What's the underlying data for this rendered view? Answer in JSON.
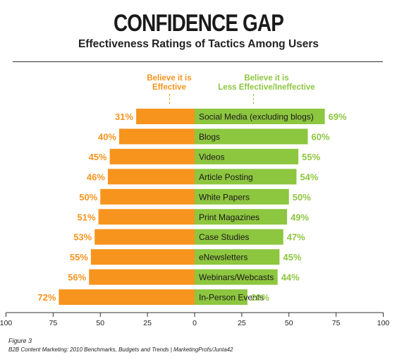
{
  "title": "CONFIDENCE GAP",
  "subtitle": "Effectiveness Ratings of Tactics Among Users",
  "legend": {
    "left_line1": "Believe it is",
    "left_line2": "Effective",
    "right_line1": "Believe it is",
    "right_line2": "Less Effective/Ineffective"
  },
  "colors": {
    "effective": "#f7941d",
    "ineffective": "#8dc63f"
  },
  "figure_label": "Figure 3",
  "source": "B2B Content Marketing: 2010 Benchmarks, Budgets and Trends | MarketingProfs/Junta42",
  "chart_data": {
    "type": "bar",
    "orientation": "horizontal-diverging",
    "categories": [
      "Social Media (excluding blogs)",
      "Blogs",
      "Videos",
      "Article Posting",
      "White Papers",
      "Print Magazines",
      "Case Studies",
      "eNewsletters",
      "Webinars/Webcasts",
      "In-Person Events"
    ],
    "series": [
      {
        "name": "Believe it is Effective",
        "values": [
          31,
          40,
          45,
          46,
          50,
          51,
          53,
          55,
          56,
          72
        ],
        "labels": [
          "31%",
          "40%",
          "45%",
          "46%",
          "50%",
          "51%",
          "53%",
          "55%",
          "56%",
          "72%"
        ]
      },
      {
        "name": "Believe it is Less Effective/Ineffective",
        "values": [
          69,
          60,
          55,
          54,
          50,
          49,
          47,
          45,
          44,
          28
        ],
        "labels": [
          "69%",
          "60%",
          "55%",
          "54%",
          "50%",
          "49%",
          "47%",
          "45%",
          "44%",
          "28%"
        ]
      }
    ],
    "x_ticks": [
      "100",
      "75",
      "50",
      "25",
      "0",
      "25",
      "50",
      "75",
      "100"
    ],
    "xlim": [
      -100,
      100
    ]
  }
}
